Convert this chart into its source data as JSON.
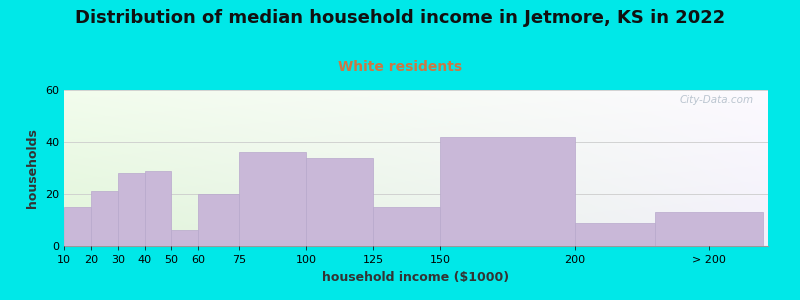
{
  "title": "Distribution of median household income in Jetmore, KS in 2022",
  "subtitle": "White residents",
  "xlabel": "household income ($1000)",
  "ylabel": "households",
  "bar_labels": [
    "10",
    "20",
    "30",
    "40",
    "50",
    "60",
    "75",
    "100",
    "125",
    "150",
    "200",
    "> 200"
  ],
  "bar_heights": [
    15,
    21,
    28,
    29,
    6,
    20,
    36,
    34,
    15,
    42,
    9,
    13
  ],
  "bar_color": "#c9b8d8",
  "bar_edge_color": "#b8a8cc",
  "ylim": [
    0,
    60
  ],
  "yticks": [
    0,
    20,
    40,
    60
  ],
  "background_color": "#00e8e8",
  "title_fontsize": 13,
  "subtitle_color": "#cc7744",
  "subtitle_fontsize": 10,
  "axis_label_fontsize": 9,
  "watermark_text": "City-Data.com",
  "watermark_color": "#b0bcc8"
}
